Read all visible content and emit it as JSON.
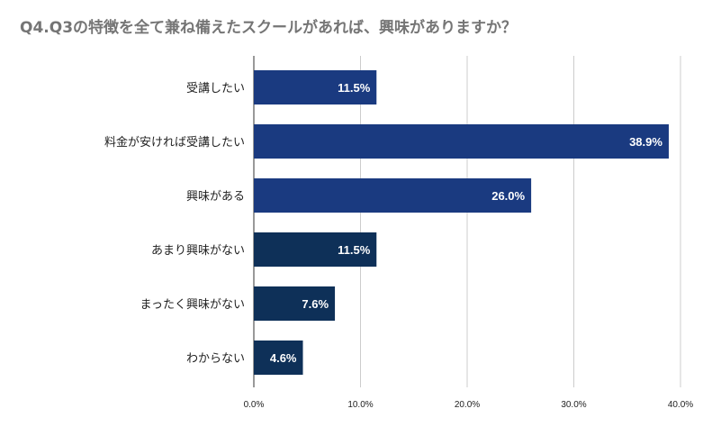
{
  "chart_data": {
    "type": "bar",
    "orientation": "horizontal",
    "title": "Q4.Q3の特徴を全て兼ね備えたスクールがあれば、興味がありますか？",
    "categories": [
      "受講したい",
      "料金が安ければ受講したい",
      "興味がある",
      "あまり興味がない",
      "まったく興味がない",
      "わからない"
    ],
    "values": [
      11.5,
      38.9,
      26.0,
      11.5,
      7.6,
      4.6
    ],
    "value_labels": [
      "11.5%",
      "38.9%",
      "26.0%",
      "11.5%",
      "7.6%",
      "4.6%"
    ],
    "bar_colors": [
      "#1a3a80",
      "#1a3a80",
      "#1a3a80",
      "#0e3058",
      "#0e3058",
      "#0e3058"
    ],
    "xlim": [
      0,
      40
    ],
    "xticks": [
      0,
      10,
      20,
      30,
      40
    ],
    "xtick_labels": [
      "0.0%",
      "10.0%",
      "20.0%",
      "30.0%",
      "40.0%"
    ],
    "grid": true,
    "legend": "none",
    "xlabel": "",
    "ylabel": ""
  }
}
